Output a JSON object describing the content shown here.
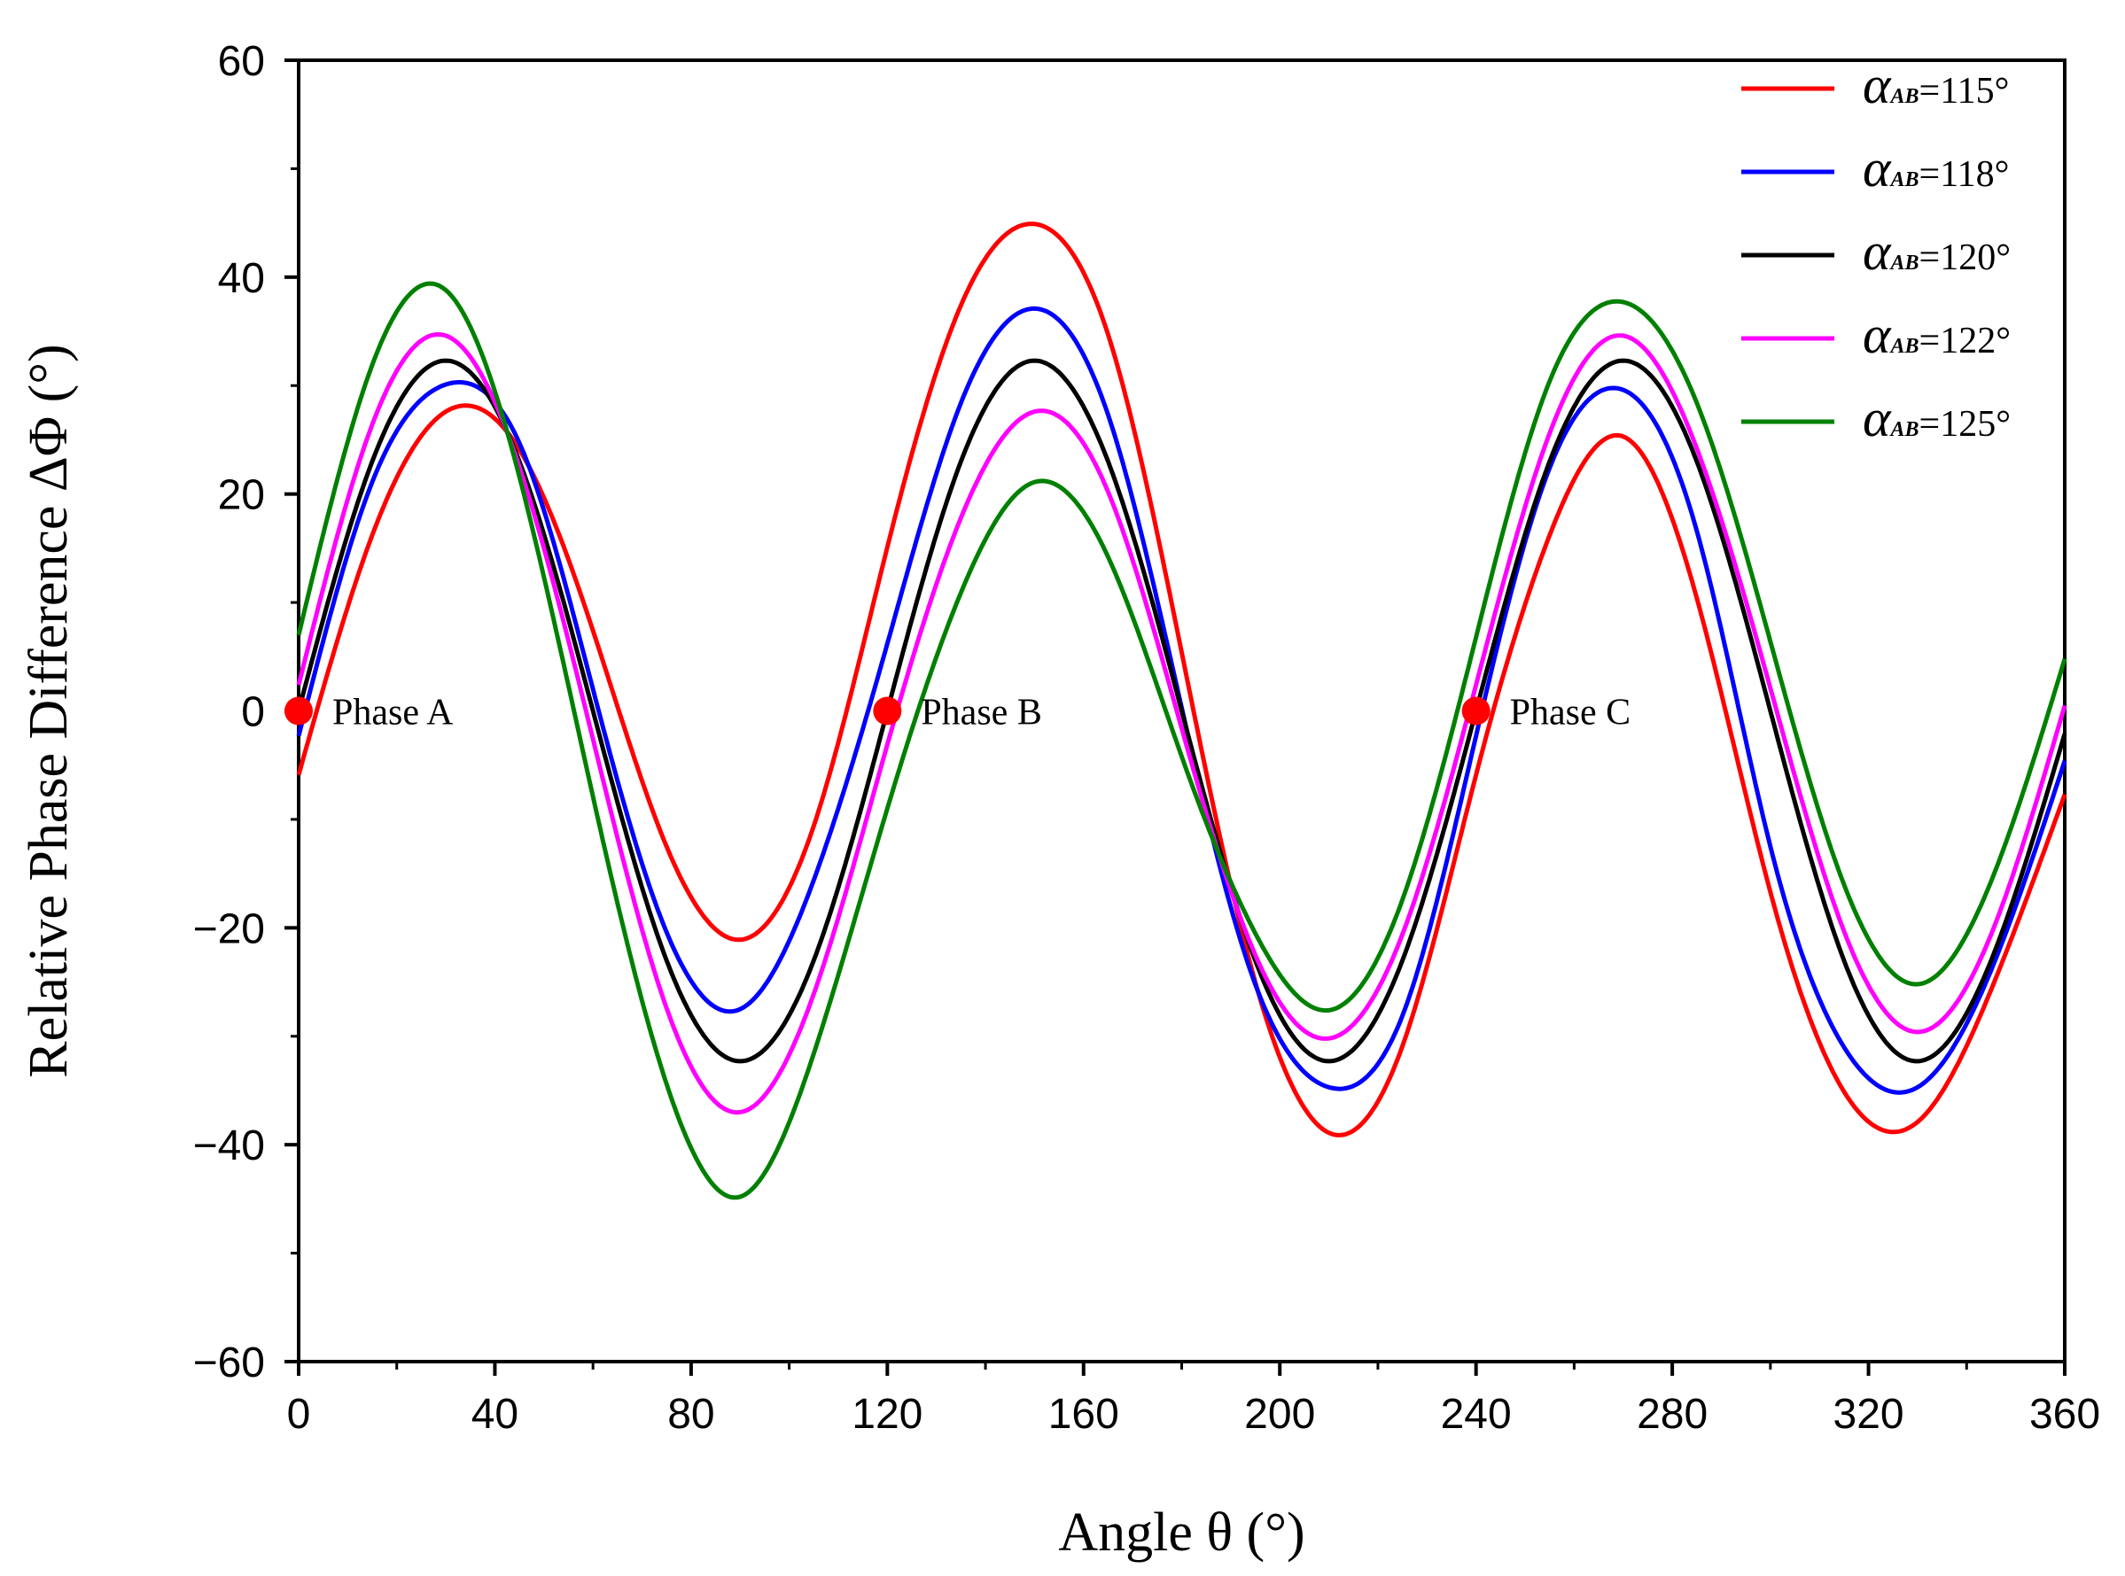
{
  "chart_data": {
    "type": "line",
    "title": "",
    "xlabel": "Angle θ (°)",
    "ylabel": "Relative Phase Difference ΔΦ (°)",
    "xlim": [
      0,
      360
    ],
    "ylim": [
      -60,
      60
    ],
    "xticks": [
      0,
      40,
      80,
      120,
      160,
      200,
      240,
      280,
      320,
      360
    ],
    "yticks": [
      -60,
      -40,
      -20,
      0,
      20,
      40,
      60
    ],
    "xtick_labels": [
      "0",
      "40",
      "80",
      "120",
      "160",
      "200",
      "240",
      "280",
      "320",
      "360"
    ],
    "ytick_labels": [
      "−60",
      "−40",
      "−20",
      "0",
      "20",
      "40",
      "60"
    ],
    "x_minor_step": 20,
    "y_minor_step": 10,
    "grid": false,
    "legend_position": "top-right",
    "series": [
      {
        "name": "α AB=115°",
        "label_symbol": "α",
        "label_sub": "AB",
        "label_rest": "=115°",
        "color": "#ff0000",
        "x": [
          0,
          15,
          30,
          45,
          60,
          75,
          90,
          105,
          120,
          135,
          150,
          165,
          180,
          195,
          210,
          225,
          240,
          255,
          270,
          285,
          300,
          315,
          330,
          345,
          360
        ],
        "y": [
          -5.9,
          16.2,
          27.6,
          24.1,
          7.4,
          -12.5,
          -21.1,
          -10.6,
          15.1,
          37.4,
          44.9,
          34.7,
          5.4,
          -25.0,
          -38.9,
          -30.9,
          -5.9,
          16.2,
          25.3,
          10.4,
          -16.7,
          -35.1,
          -37.9,
          -25.7,
          -7.7
        ]
      },
      {
        "name": "α AB=118°",
        "label_symbol": "α",
        "label_sub": "AB",
        "label_rest": "=118°",
        "color": "#0000ff",
        "x": [
          0,
          15,
          30,
          45,
          60,
          75,
          90,
          105,
          120,
          135,
          150,
          165,
          180,
          195,
          210,
          225,
          240,
          255,
          270,
          285,
          300,
          315,
          330,
          345,
          360
        ],
        "y": [
          -2.3,
          21.1,
          30.1,
          24.7,
          2.0,
          -20.4,
          -27.5,
          -15.6,
          6.2,
          28.4,
          37.1,
          27.3,
          0.3,
          -25.2,
          -34.7,
          -28.1,
          -2.3,
          22.4,
          29.6,
          16.6,
          -12.5,
          -31.0,
          -34.7,
          -23.9,
          -4.6
        ]
      },
      {
        "name": "α AB=120°",
        "label_symbol": "α",
        "label_sub": "AB",
        "label_rest": "=120°",
        "color": "#000000",
        "x": [
          0,
          15,
          30,
          45,
          60,
          75,
          90,
          105,
          120,
          135,
          150,
          165,
          180,
          195,
          210,
          225,
          240,
          255,
          270,
          285,
          300,
          315,
          330,
          345,
          360
        ],
        "y": [
          0.0,
          23.0,
          32.3,
          23.0,
          0.0,
          -23.0,
          -32.3,
          -23.0,
          0.0,
          23.0,
          32.3,
          23.0,
          0.0,
          -23.0,
          -32.3,
          -23.0,
          0.0,
          23.0,
          32.3,
          23.0,
          0.0,
          -23.0,
          -32.3,
          -23.0,
          -2.1
        ]
      },
      {
        "name": "α AB=122°",
        "label_symbol": "α",
        "label_sub": "AB",
        "label_rest": "=122°",
        "color": "#ff00ff",
        "x": [
          0,
          15,
          30,
          45,
          60,
          75,
          90,
          105,
          120,
          135,
          150,
          165,
          180,
          195,
          210,
          225,
          240,
          255,
          270,
          285,
          300,
          315,
          330,
          345,
          360
        ],
        "y": [
          2.4,
          26.4,
          34.6,
          22.5,
          -2.6,
          -27.4,
          -37.0,
          -26.1,
          -3.1,
          17.8,
          27.6,
          20.2,
          -1.6,
          -22.5,
          -30.2,
          -20.6,
          2.4,
          25.6,
          34.6,
          24.2,
          2.1,
          -20.3,
          -29.6,
          -20.6,
          0.5
        ]
      },
      {
        "name": "α AB=125°",
        "label_symbol": "α",
        "label_sub": "AB",
        "label_rest": "=125°",
        "color": "#008000",
        "x": [
          0,
          15,
          30,
          45,
          60,
          75,
          90,
          105,
          120,
          135,
          150,
          165,
          180,
          195,
          210,
          225,
          240,
          255,
          270,
          285,
          300,
          315,
          330,
          345,
          360
        ],
        "y": [
          7.0,
          31.9,
          38.8,
          21.6,
          -7.9,
          -34.4,
          -44.8,
          -31.6,
          -9.0,
          10.9,
          21.1,
          14.2,
          -4.2,
          -20.5,
          -27.6,
          -17.4,
          6.8,
          30.4,
          37.7,
          28.4,
          6.4,
          -16.0,
          -25.2,
          -15.7,
          4.8
        ]
      }
    ],
    "annotations": [
      {
        "text": "Phase A",
        "x": 0,
        "y": 0,
        "marker_color": "#ff0000"
      },
      {
        "text": "Phase B",
        "x": 120,
        "y": 0,
        "marker_color": "#ff0000"
      },
      {
        "text": "Phase C",
        "x": 240,
        "y": 0,
        "marker_color": "#ff0000"
      }
    ]
  }
}
